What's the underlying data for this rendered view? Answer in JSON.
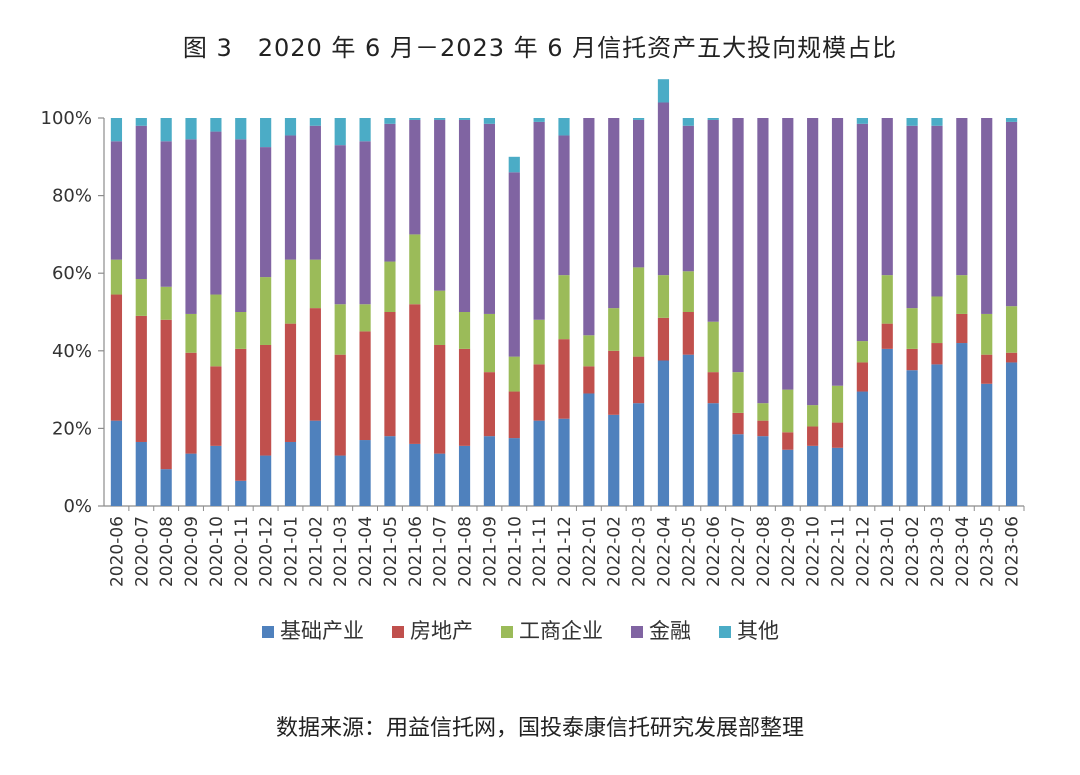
{
  "title": "图 3　2020 年 6 月－2023 年 6 月信托资产五大投向规模占比",
  "source": "数据来源：用益信托网，国投泰康信托研究发展部整理",
  "colors": {
    "基础产业": "#4F81BD",
    "房地产": "#C0504D",
    "工商企业": "#9BBB59",
    "金融": "#8064A2",
    "其他": "#4BACC6"
  },
  "chart_data": {
    "type": "bar",
    "stacked": true,
    "title": "图 3　2020 年 6 月－2023 年 6 月信托资产五大投向规模占比",
    "xlabel": "",
    "ylabel": "",
    "ylim": [
      0,
      100
    ],
    "yticks": [
      "0%",
      "20%",
      "40%",
      "60%",
      "80%",
      "100%"
    ],
    "legend_position": "bottom",
    "grid": false,
    "categories": [
      "2020-06",
      "2020-07",
      "2020-08",
      "2020-09",
      "2020-10",
      "2020-11",
      "2020-12",
      "2021-01",
      "2021-02",
      "2021-03",
      "2021-04",
      "2021-05",
      "2021-06",
      "2021-07",
      "2021-08",
      "2021-09",
      "2021-10",
      "2021-11",
      "2021-12",
      "2022-01",
      "2022-02",
      "2022-03",
      "2022-04",
      "2022-05",
      "2022-06",
      "2022-07",
      "2022-08",
      "2022-09",
      "2022-10",
      "2022-11",
      "2022-12",
      "2023-01",
      "2023-02",
      "2023-03",
      "2023-04",
      "2023-05",
      "2023-06"
    ],
    "series": [
      {
        "name": "基础产业",
        "values": [
          22,
          16.5,
          9.5,
          13.5,
          15.5,
          6.5,
          13,
          16.5,
          22,
          13,
          17,
          18,
          16,
          13.5,
          15.5,
          18,
          17.5,
          22,
          22.5,
          29,
          23.5,
          26.5,
          37.5,
          39,
          26.5,
          18.5,
          18,
          14.5,
          15.5,
          15,
          29.5,
          40.5,
          35,
          36.5,
          42,
          31.5,
          37
        ]
      },
      {
        "name": "房地产",
        "values": [
          32.5,
          32.5,
          38.5,
          26,
          20.5,
          34,
          28.5,
          30.5,
          29,
          26,
          28,
          32,
          36,
          28,
          25,
          16.5,
          12,
          14.5,
          20.5,
          7,
          16.5,
          12,
          11,
          11,
          8,
          5.5,
          4,
          4.5,
          5,
          6.5,
          7.5,
          6.5,
          5.5,
          5.5,
          7.5,
          7.5,
          2.5
        ]
      },
      {
        "name": "工商企业",
        "values": [
          9,
          9.5,
          8.5,
          10,
          18.5,
          9.5,
          17.5,
          16.5,
          12.5,
          13,
          7,
          13,
          18,
          14,
          9.5,
          15,
          9,
          11.5,
          16.5,
          8,
          11,
          23,
          11,
          10.5,
          13,
          10.5,
          4.5,
          11,
          5.5,
          9.5,
          5.5,
          12.5,
          10.5,
          12,
          10,
          10.5,
          12
        ]
      },
      {
        "name": "金融",
        "values": [
          30.5,
          39.5,
          37.5,
          45,
          42,
          44.5,
          33.5,
          32,
          34.5,
          41,
          42,
          35.5,
          29.5,
          44,
          49.5,
          49,
          47.5,
          51,
          36,
          56,
          49,
          38,
          44.5,
          37.5,
          52,
          65.5,
          73.5,
          70,
          74,
          69,
          56,
          40.5,
          47,
          44,
          40.5,
          50.5,
          47.5
        ]
      },
      {
        "name": "其他",
        "values": [
          6,
          2,
          6,
          5.5,
          3.5,
          5.5,
          7.5,
          4.5,
          2,
          7,
          6,
          1.5,
          0.5,
          0.5,
          0.5,
          1.5,
          4,
          1,
          4.5,
          0,
          0,
          0.5,
          6,
          2,
          0.5,
          0,
          0,
          0,
          0,
          0,
          1.5,
          0,
          2,
          2,
          0,
          0,
          1
        ]
      }
    ]
  }
}
